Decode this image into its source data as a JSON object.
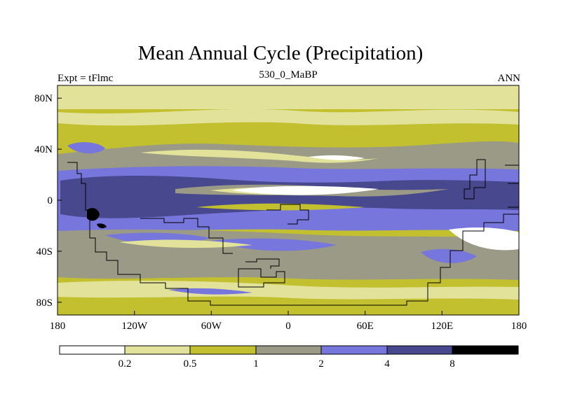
{
  "title": "Mean Annual Cycle (Precipitation)",
  "left_label": "Expt = tFlmc",
  "center_label": "530_0_MaBP",
  "right_label": "ANN",
  "colors": {
    "level0": "#ffffff",
    "level1": "#e2e29a",
    "level2": "#c2c02e",
    "level3": "#9a9a86",
    "level4": "#7676dc",
    "level5": "#48488e",
    "level6": "#000000"
  },
  "chart_data": {
    "type": "contour_map",
    "variable": "Precipitation",
    "x_ticks": [
      "180",
      "120W",
      "60W",
      "0",
      "60E",
      "120E",
      "180"
    ],
    "y_ticks": [
      "80N",
      "40N",
      "0",
      "40S",
      "80S"
    ],
    "colorbar_levels": [
      "0.2",
      "0.5",
      "1",
      "2",
      "4",
      "8"
    ],
    "x_range": [
      -180,
      180
    ],
    "y_range": [
      -90,
      90
    ]
  }
}
